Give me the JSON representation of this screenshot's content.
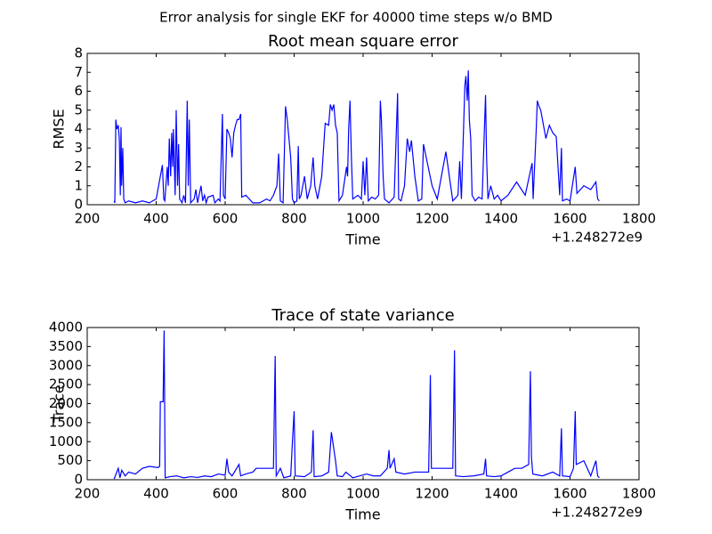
{
  "suptitle": "Error analysis for single EKF for 40000 time steps w/o BMD",
  "chart_data": [
    {
      "type": "line",
      "title": "Root mean square error",
      "xlabel": "Time",
      "ylabel": "RMSE",
      "x_offset": "+1.248272e9",
      "xlim": [
        200,
        1800
      ],
      "xticks": [
        200,
        400,
        600,
        800,
        1000,
        1200,
        1400,
        1600,
        1800
      ],
      "ylim": [
        0,
        8
      ],
      "yticks": [
        0,
        1,
        2,
        3,
        4,
        5,
        6,
        7,
        8
      ],
      "x": [
        278,
        280,
        283,
        286,
        290,
        293,
        296,
        298,
        300,
        303,
        306,
        310,
        320,
        340,
        360,
        380,
        400,
        418,
        422,
        425,
        432,
        435,
        438,
        442,
        445,
        448,
        450,
        455,
        458,
        462,
        465,
        468,
        475,
        480,
        485,
        490,
        493,
        496,
        500,
        510,
        515,
        520,
        530,
        535,
        540,
        545,
        550,
        565,
        570,
        580,
        585,
        592,
        595,
        600,
        605,
        610,
        615,
        620,
        625,
        630,
        635,
        640,
        645,
        648,
        660,
        670,
        680,
        700,
        720,
        730,
        740,
        750,
        755,
        760,
        768,
        775,
        780,
        785,
        790,
        795,
        800,
        808,
        812,
        815,
        820,
        830,
        838,
        848,
        855,
        860,
        868,
        880,
        890,
        900,
        905,
        910,
        915,
        920,
        925,
        930,
        940,
        948,
        952,
        955,
        958,
        962,
        966,
        970,
        985,
        995,
        1000,
        1005,
        1010,
        1015,
        1025,
        1035,
        1045,
        1050,
        1053,
        1058,
        1062,
        1075,
        1090,
        1100,
        1103,
        1110,
        1120,
        1128,
        1135,
        1140,
        1150,
        1160,
        1170,
        1175,
        1200,
        1215,
        1240,
        1260,
        1275,
        1280,
        1285,
        1292,
        1295,
        1298,
        1302,
        1305,
        1308,
        1312,
        1316,
        1325,
        1335,
        1345,
        1355,
        1358,
        1362,
        1370,
        1380,
        1390,
        1400,
        1420,
        1445,
        1470,
        1490,
        1493,
        1502,
        1505,
        1510,
        1515,
        1520,
        1525,
        1530,
        1540,
        1550,
        1560,
        1570,
        1575,
        1578,
        1590,
        1600,
        1615,
        1620,
        1640,
        1660,
        1675,
        1680,
        1685
      ],
      "series": [
        {
          "color": "#0000ff",
          "values": [
            0.2,
            0.1,
            4.5,
            4.0,
            4.2,
            3.5,
            0.5,
            4.1,
            1,
            3,
            0.3,
            0.1,
            0.2,
            0.1,
            0.2,
            0.1,
            0.3,
            2.1,
            0.3,
            0.2,
            2,
            1,
            3.5,
            1.5,
            3.8,
            2,
            4,
            0.5,
            5.0,
            1,
            3.2,
            0.3,
            0.1,
            0.5,
            0.1,
            5.5,
            1,
            4.5,
            0.1,
            0.3,
            0.8,
            0.1,
            1,
            0.2,
            0.5,
            0.1,
            0.4,
            0.5,
            0.1,
            0.3,
            0.2,
            4.8,
            0.5,
            0.3,
            4,
            3.8,
            3.5,
            2.5,
            3.8,
            4.2,
            4.5,
            4.5,
            4.8,
            0.4,
            0.5,
            0.3,
            0.1,
            0.1,
            0.3,
            0.2,
            0.5,
            1.0,
            2.7,
            0.2,
            0.1,
            5.2,
            4.5,
            3.5,
            2.5,
            0.3,
            0.1,
            0.2,
            3.1,
            0.3,
            0.5,
            1.5,
            0.3,
            1.0,
            2.5,
            1.0,
            0.3,
            1.5,
            4.3,
            4.2,
            5.3,
            5.0,
            5.3,
            4.2,
            3.8,
            0.2,
            0.5,
            1.5,
            2.0,
            1.5,
            4,
            5.5,
            2.5,
            0.3,
            0.5,
            0.3,
            2.3,
            0.5,
            2.5,
            0.2,
            0.4,
            0.3,
            0.5,
            5.5,
            4.5,
            1.5,
            0.3,
            0.1,
            0.4,
            5.9,
            0.3,
            0.2,
            1.0,
            3.5,
            2.8,
            3.4,
            1.5,
            0.2,
            0.3,
            3.2,
            1.0,
            0.3,
            2.8,
            0.2,
            0.5,
            2.3,
            0.3,
            4.5,
            6.3,
            6.8,
            5.5,
            7.1,
            4.5,
            3.5,
            0.5,
            0.2,
            0.4,
            0.3,
            5.8,
            2.5,
            0.3,
            1.0,
            0.3,
            0.5,
            0.2,
            0.5,
            1.2,
            0.5,
            2.2,
            0.3,
            4,
            5.5,
            5.2,
            5.0,
            4.5,
            4.0,
            3.5,
            4.2,
            3.8,
            3.6,
            0.5,
            3,
            0.2,
            0.3,
            0.2,
            2.0,
            0.6,
            1.0,
            0.8,
            1.2,
            0.3,
            0.2
          ]
        }
      ]
    },
    {
      "type": "line",
      "title": "Trace of state variance",
      "xlabel": "Time",
      "ylabel": "Trace",
      "x_offset": "+1.248272e9",
      "xlim": [
        200,
        1800
      ],
      "xticks": [
        200,
        400,
        600,
        800,
        1000,
        1200,
        1400,
        1600,
        1800
      ],
      "ylim": [
        0,
        4000
      ],
      "yticks": [
        0,
        500,
        1000,
        1500,
        2000,
        2500,
        3000,
        3500,
        4000
      ],
      "x": [
        278,
        290,
        295,
        300,
        310,
        320,
        340,
        360,
        380,
        405,
        410,
        412,
        420,
        423,
        426,
        440,
        460,
        480,
        500,
        520,
        540,
        560,
        580,
        600,
        605,
        610,
        620,
        640,
        645,
        660,
        680,
        690,
        720,
        740,
        745,
        748,
        760,
        770,
        790,
        795,
        800,
        803,
        830,
        850,
        855,
        858,
        880,
        900,
        908,
        912,
        920,
        925,
        940,
        950,
        970,
        990,
        1010,
        1030,
        1050,
        1070,
        1075,
        1078,
        1090,
        1095,
        1120,
        1150,
        1190,
        1195,
        1198,
        1220,
        1260,
        1265,
        1268,
        1290,
        1320,
        1350,
        1355,
        1358,
        1380,
        1400,
        1420,
        1440,
        1460,
        1480,
        1485,
        1488,
        1492,
        1520,
        1550,
        1570,
        1575,
        1578,
        1600,
        1610,
        1615,
        1618,
        1640,
        1650,
        1660,
        1675,
        1680,
        1685
      ],
      "series": [
        {
          "color": "#0000ff",
          "values": [
            20,
            300,
            50,
            250,
            100,
            200,
            150,
            300,
            350,
            320,
            350,
            2050,
            2050,
            3920,
            50,
            80,
            100,
            50,
            80,
            60,
            100,
            80,
            150,
            120,
            550,
            200,
            100,
            400,
            100,
            150,
            200,
            300,
            300,
            300,
            3250,
            100,
            300,
            50,
            100,
            1000,
            1800,
            100,
            80,
            200,
            1300,
            80,
            100,
            200,
            1250,
            1000,
            500,
            100,
            80,
            200,
            50,
            100,
            150,
            100,
            100,
            300,
            780,
            300,
            550,
            200,
            150,
            200,
            200,
            2750,
            300,
            300,
            300,
            3400,
            100,
            80,
            100,
            150,
            550,
            100,
            80,
            100,
            200,
            300,
            300,
            400,
            2850,
            600,
            150,
            100,
            200,
            100,
            1350,
            100,
            80,
            300,
            1800,
            400,
            500,
            300,
            100,
            500,
            100,
            50
          ]
        }
      ]
    }
  ]
}
